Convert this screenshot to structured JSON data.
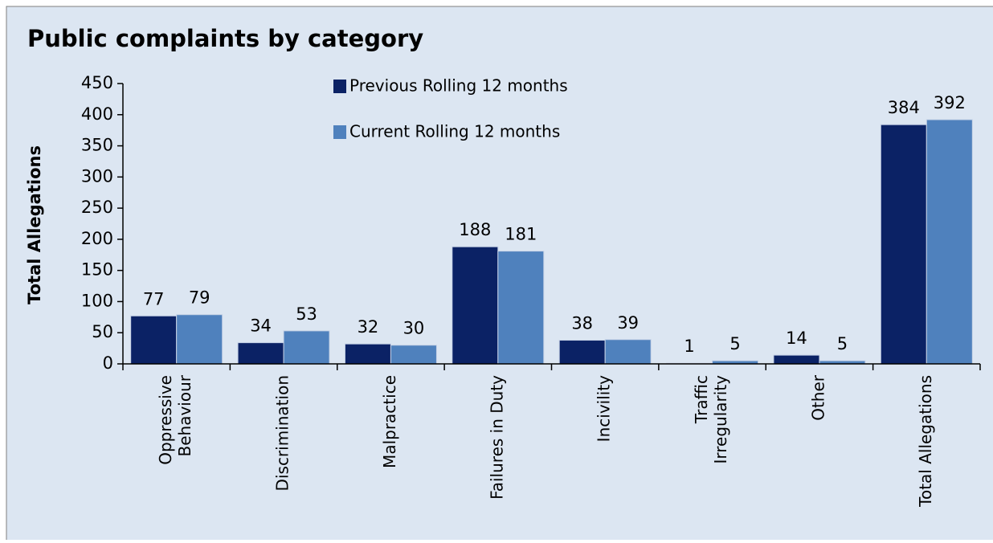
{
  "chart_data": {
    "type": "bar",
    "title": "Public complaints by category",
    "y_label": "Total Allegations",
    "categories": [
      [
        "Oppressive",
        "Behaviour"
      ],
      [
        "Discrimination"
      ],
      [
        "Malpractice"
      ],
      [
        "Failures in Duty"
      ],
      [
        "Incivility"
      ],
      [
        "Traffic",
        "Irregularity"
      ],
      [
        "Other"
      ],
      [
        "Total Allegations"
      ]
    ],
    "series": [
      {
        "name": "Previous Rolling 12 months",
        "color": "#0b2265",
        "values": [
          77,
          34,
          32,
          188,
          38,
          1,
          14,
          384
        ]
      },
      {
        "name": "Current Rolling 12 months",
        "color": "#4f81bd",
        "values": [
          79,
          53,
          30,
          181,
          39,
          5,
          5,
          392
        ]
      }
    ],
    "ylim": [
      0,
      450
    ],
    "yticks": [
      0,
      50,
      100,
      150,
      200,
      250,
      300,
      350,
      400,
      450
    ],
    "legend": "top-center"
  }
}
